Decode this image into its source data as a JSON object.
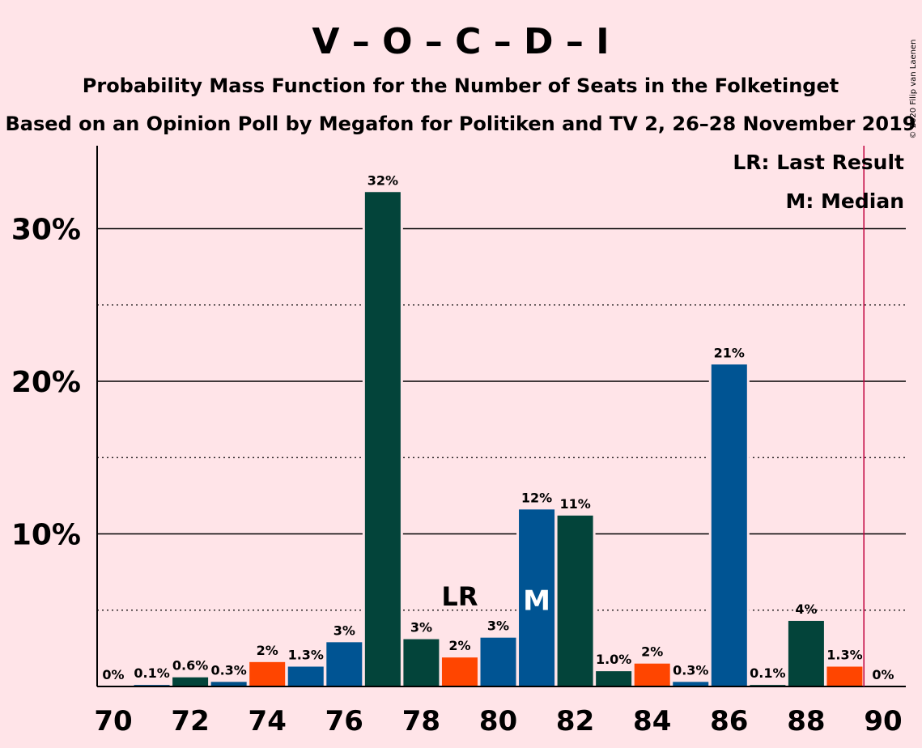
{
  "copyright": "© 2020 Filip van Laenen",
  "chart_data": {
    "type": "bar",
    "title": "V – O – C – D – I",
    "subtitle1": "Probability Mass Function for the Number of Seats in the Folketinget",
    "subtitle2": "Based on an Opinion Poll by Megafon for Politiken and TV 2, 26–28 November 2019",
    "xlabel": "",
    "ylabel": "",
    "x": [
      70,
      71,
      72,
      73,
      74,
      75,
      76,
      77,
      78,
      79,
      80,
      81,
      82,
      83,
      84,
      85,
      86,
      87,
      88,
      89,
      90
    ],
    "values": [
      0,
      0.1,
      0.6,
      0.3,
      1.6,
      1.3,
      2.9,
      32.4,
      3.1,
      1.9,
      3.2,
      11.6,
      11.2,
      1.0,
      1.5,
      0.3,
      21.1,
      0.1,
      4.3,
      1.3,
      0
    ],
    "labels": [
      "0%",
      "0.1%",
      "0.6%",
      "0.3%",
      "2%",
      "1.3%",
      "3%",
      "32%",
      "3%",
      "2%",
      "3%",
      "12%",
      "11%",
      "1.0%",
      "2%",
      "0.3%",
      "21%",
      "0.1%",
      "4%",
      "1.3%",
      "0%"
    ],
    "parties": [
      "V",
      "O",
      "C",
      "D",
      "I"
    ],
    "bar_colors": [
      "#003F6B",
      "#004E86",
      "#03443A",
      "#005493",
      "#FF4500"
    ],
    "bar_color_index": [
      0,
      1,
      2,
      1,
      4,
      3,
      3,
      2,
      2,
      4,
      3,
      3,
      2,
      2,
      4,
      3,
      3,
      2,
      2,
      4,
      3
    ],
    "xticks": [
      "70",
      "72",
      "74",
      "76",
      "78",
      "80",
      "82",
      "84",
      "86",
      "88",
      "90"
    ],
    "yticks": [
      "10%",
      "20%",
      "30%"
    ],
    "ylim": [
      0,
      35
    ],
    "grid": "solid at 10%, 20%, 30%; dotted at 5%, 15%, 25%",
    "last_result": 79,
    "median": 81,
    "majority_line": 89.5,
    "lr_marker": "LR",
    "median_marker": "M",
    "legend": [
      "LR: Last Result",
      "M: Median"
    ],
    "legend_position": "top-right",
    "colors": {
      "background": "#FFE4E8",
      "majority_line": "#C0003D",
      "text": "#000000",
      "median_text": "#FFFFFF"
    }
  }
}
